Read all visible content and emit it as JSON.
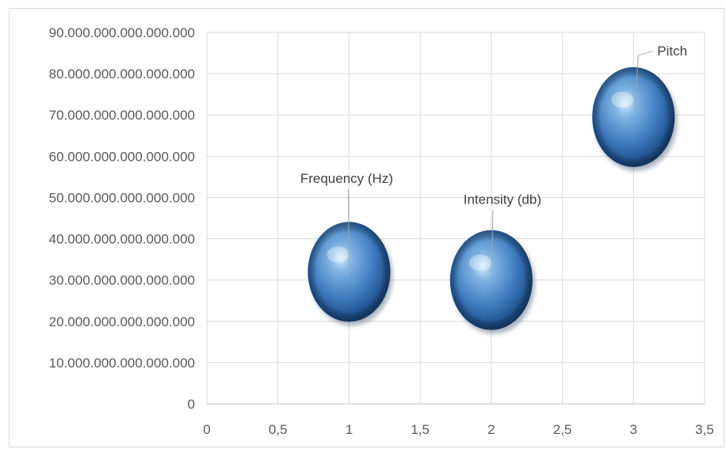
{
  "chart_data": {
    "type": "scatter",
    "variant": "3d-bubble",
    "title": "",
    "xlabel": "",
    "ylabel": "",
    "xlim": [
      0,
      3.5
    ],
    "ylim": [
      0,
      90000000000000000
    ],
    "x_ticks": [
      "0",
      "0,5",
      "1",
      "1,5",
      "2",
      "2,5",
      "3",
      "3,5"
    ],
    "y_ticks": [
      "0",
      "10.000.000.000.000.000",
      "20.000.000.000.000.000",
      "30.000.000.000.000.000",
      "40.000.000.000.000.000",
      "50.000.000.000.000.000",
      "60.000.000.000.000.000",
      "70.000.000.000.000.000",
      "80.000.000.000.000.000",
      "90.000.000.000.000.000"
    ],
    "grid": true,
    "legend": "none",
    "bubble_color": "#4f81bd",
    "points": [
      {
        "label": "Frequency (Hz)",
        "x": 1,
        "y": 32000000000000000
      },
      {
        "label": "Intensity (db)",
        "x": 2,
        "y": 30000000000000000
      },
      {
        "label": "Pitch",
        "x": 3,
        "y": 69500000000000000
      }
    ]
  }
}
